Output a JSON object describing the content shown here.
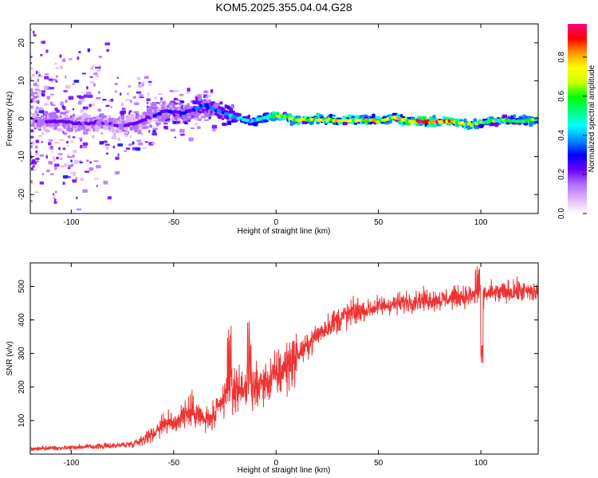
{
  "title": "KOM5.2025.355.04.04.G28",
  "chart_data": [
    {
      "type": "heatmap",
      "xlabel": "Height of straight line (km)",
      "ylabel": "Frequency (Hz)",
      "xlim": [
        -120,
        128
      ],
      "ylim": [
        -25,
        25
      ],
      "xticks": [
        -100,
        -50,
        0,
        50,
        100
      ],
      "xtick_labels": [
        "-100",
        "-50",
        "0",
        "50",
        "100"
      ],
      "yticks": [
        -20,
        -10,
        0,
        10,
        20
      ],
      "ytick_labels": [
        "-20",
        "-10",
        "0",
        "10",
        "20"
      ],
      "colorbar": {
        "label": "Normalized spectral amplitude",
        "range": [
          0,
          0.97
        ],
        "ticks": [
          0.0,
          0.2,
          0.4,
          0.6,
          0.8
        ],
        "tick_labels": [
          "0.0",
          "0.2",
          "0.4",
          "0.6",
          "0.8"
        ],
        "colors": [
          "#ffffff",
          "#e1b4f7",
          "#b070ff",
          "#6a00ff",
          "#0000ff",
          "#008cff",
          "#00ffff",
          "#00ff80",
          "#00ff00",
          "#ccff00",
          "#ffff00",
          "#ff9900",
          "#ff0000",
          "#ff007f"
        ]
      },
      "ridge": {
        "x": [
          -115,
          -105,
          -95,
          -85,
          -75,
          -65,
          -55,
          -45,
          -35,
          -28,
          -20,
          -12,
          -5,
          0,
          5,
          10,
          20,
          30,
          40,
          50,
          58,
          65,
          75,
          85,
          95,
          102,
          110,
          118,
          128
        ],
        "y": [
          -0.5,
          -0.8,
          -1.2,
          -1.0,
          -2.0,
          -0.5,
          2.0,
          1.5,
          3.5,
          2.0,
          0.5,
          -0.8,
          0.3,
          0.8,
          0.5,
          -0.4,
          -0.2,
          -0.5,
          -0.3,
          -0.6,
          0.2,
          -0.6,
          -0.8,
          -0.6,
          -1.6,
          -0.8,
          -0.4,
          -0.7,
          -0.2
        ],
        "amplitude": [
          0.22,
          0.22,
          0.22,
          0.2,
          0.2,
          0.22,
          0.26,
          0.28,
          0.35,
          0.38,
          0.4,
          0.45,
          0.55,
          0.75,
          0.7,
          0.7,
          0.72,
          0.72,
          0.75,
          0.75,
          0.72,
          0.8,
          0.9,
          0.85,
          0.68,
          0.62,
          0.6,
          0.6,
          0.58
        ]
      }
    },
    {
      "type": "line",
      "xlabel": "Height of straight line (km)",
      "ylabel": "SNR (v/v)",
      "xlim": [
        -120,
        128
      ],
      "ylim": [
        0,
        570
      ],
      "xticks": [
        -100,
        -50,
        0,
        50,
        100
      ],
      "xtick_labels": [
        "-100",
        "-50",
        "0",
        "50",
        "100"
      ],
      "yticks": [
        100,
        200,
        300,
        400,
        500
      ],
      "ytick_labels": [
        "100",
        "200",
        "300",
        "400",
        "500"
      ],
      "color": "#ee3333",
      "series": [
        {
          "name": "SNR",
          "x": [
            -120,
            -110,
            -100,
            -90,
            -80,
            -70,
            -65,
            -60,
            -55,
            -50,
            -45,
            -40,
            -35,
            -30,
            -25,
            -22,
            -20,
            -15,
            -10,
            -5,
            0,
            5,
            10,
            15,
            20,
            25,
            30,
            35,
            40,
            45,
            50,
            55,
            60,
            65,
            70,
            75,
            80,
            85,
            90,
            95,
            100,
            105,
            110,
            115,
            120,
            128
          ],
          "y": [
            15,
            18,
            20,
            22,
            25,
            30,
            45,
            60,
            95,
            90,
            120,
            130,
            100,
            110,
            170,
            205,
            190,
            205,
            200,
            215,
            235,
            260,
            295,
            320,
            355,
            380,
            400,
            415,
            425,
            430,
            440,
            445,
            450,
            455,
            460,
            460,
            460,
            465,
            470,
            470,
            475,
            480,
            480,
            485,
            485,
            480
          ]
        }
      ],
      "annotations": [
        {
          "x": 100,
          "y": 265,
          "note": "dip"
        },
        {
          "x": -23,
          "y": 380,
          "note": "spike"
        },
        {
          "x": -13,
          "y": 395,
          "note": "spike"
        }
      ]
    }
  ]
}
